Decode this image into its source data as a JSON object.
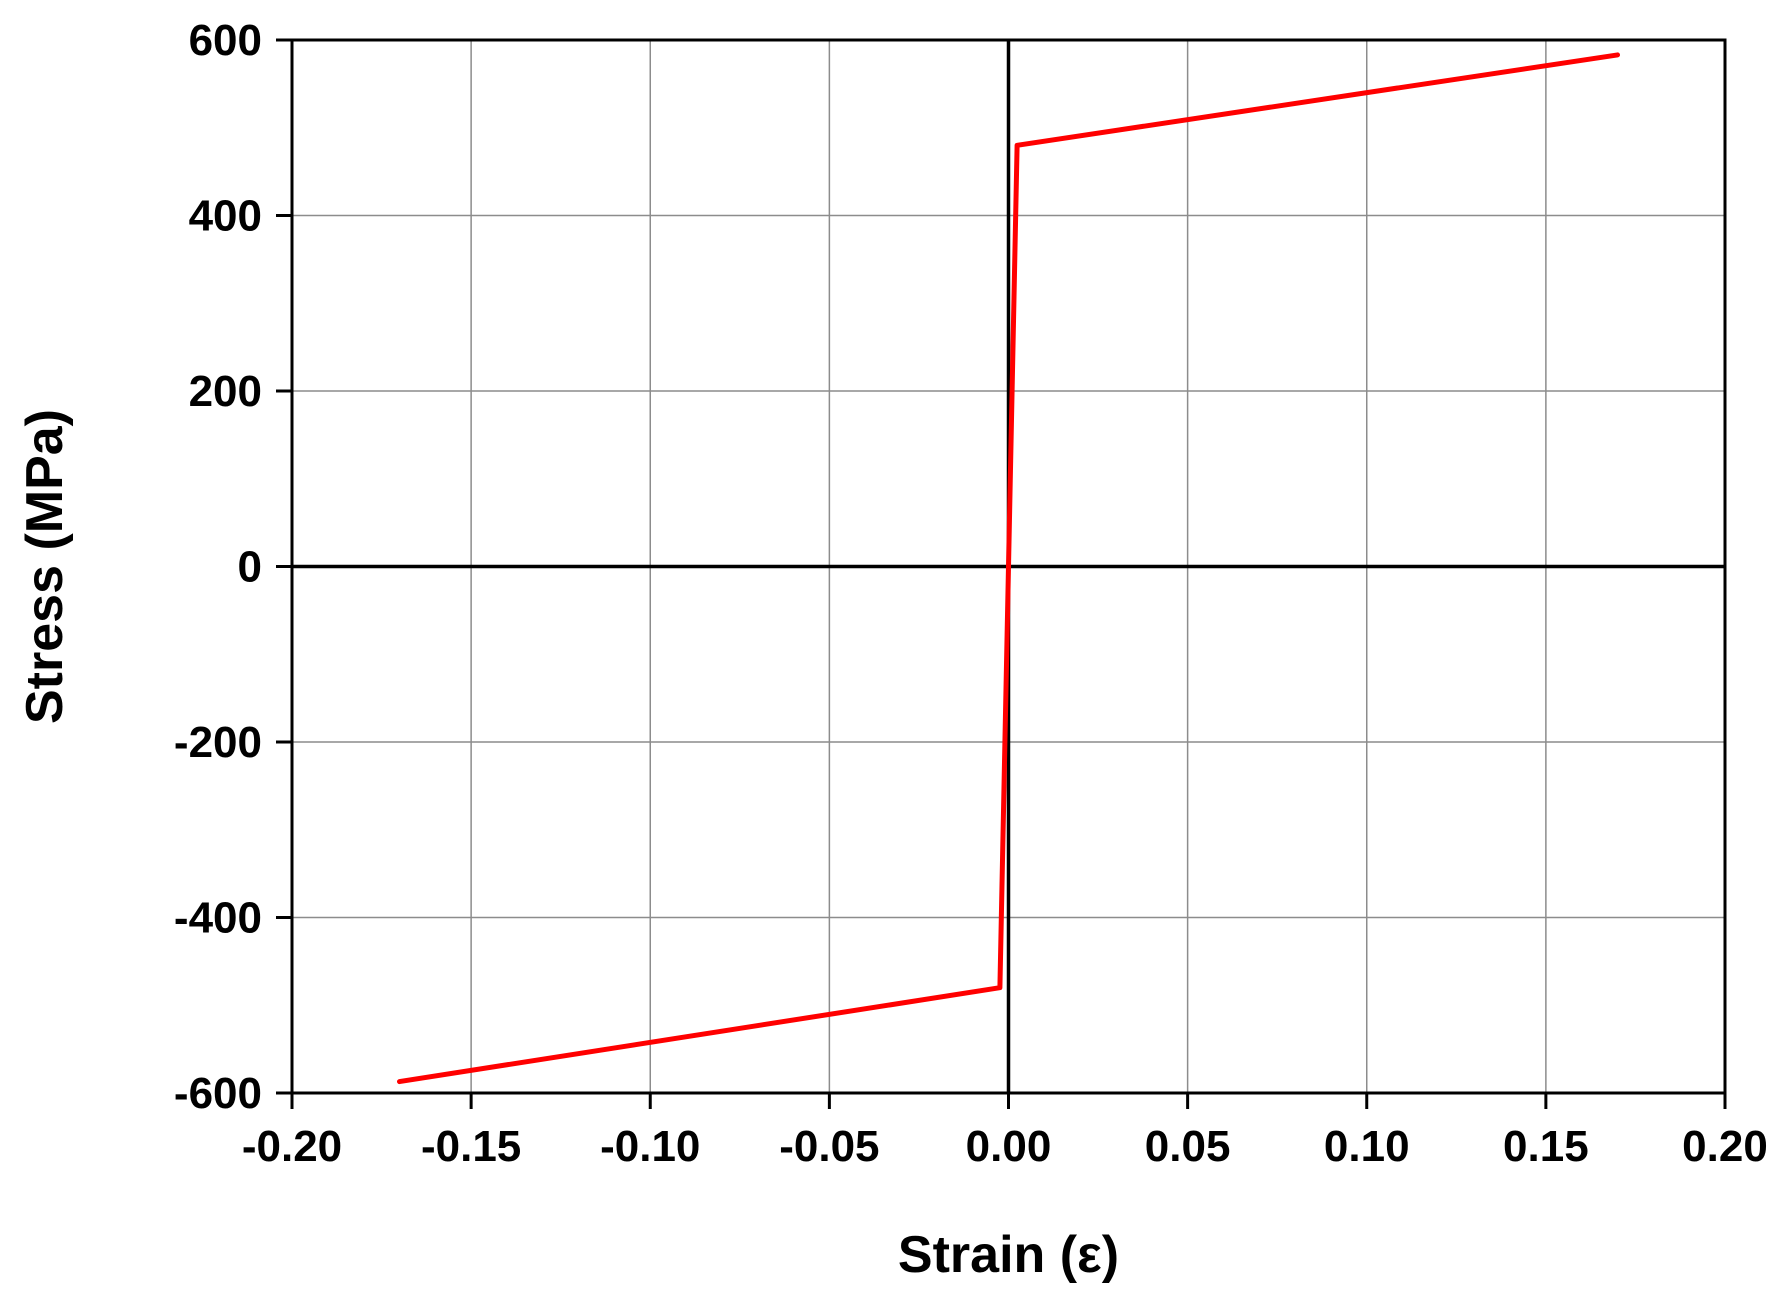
{
  "chart_data": {
    "type": "line",
    "title": "",
    "xlabel": "Strain (ε)",
    "ylabel": "Stress (MPa)",
    "xlim": [
      -0.2,
      0.2
    ],
    "ylim": [
      -600,
      600
    ],
    "x_ticks": [
      -0.2,
      -0.15,
      -0.1,
      -0.05,
      0.0,
      0.05,
      0.1,
      0.15,
      0.2
    ],
    "x_tick_labels": [
      "-0.20",
      "-0.15",
      "-0.10",
      "-0.05",
      "0.00",
      "0.05",
      "0.10",
      "0.15",
      "0.20"
    ],
    "y_ticks": [
      -600,
      -400,
      -200,
      0,
      200,
      400,
      600
    ],
    "y_tick_labels": [
      "-600",
      "-400",
      "-200",
      "0",
      "200",
      "400",
      "600"
    ],
    "grid": true,
    "zero_lines": true,
    "legend": "none",
    "series": [
      {
        "color": "#ff0000",
        "x": [
          -0.17,
          -0.0024,
          -0.0024,
          0.0024,
          0.0024,
          0.17
        ],
        "y": [
          -587,
          -480,
          -480,
          480,
          480,
          583
        ]
      }
    ]
  }
}
